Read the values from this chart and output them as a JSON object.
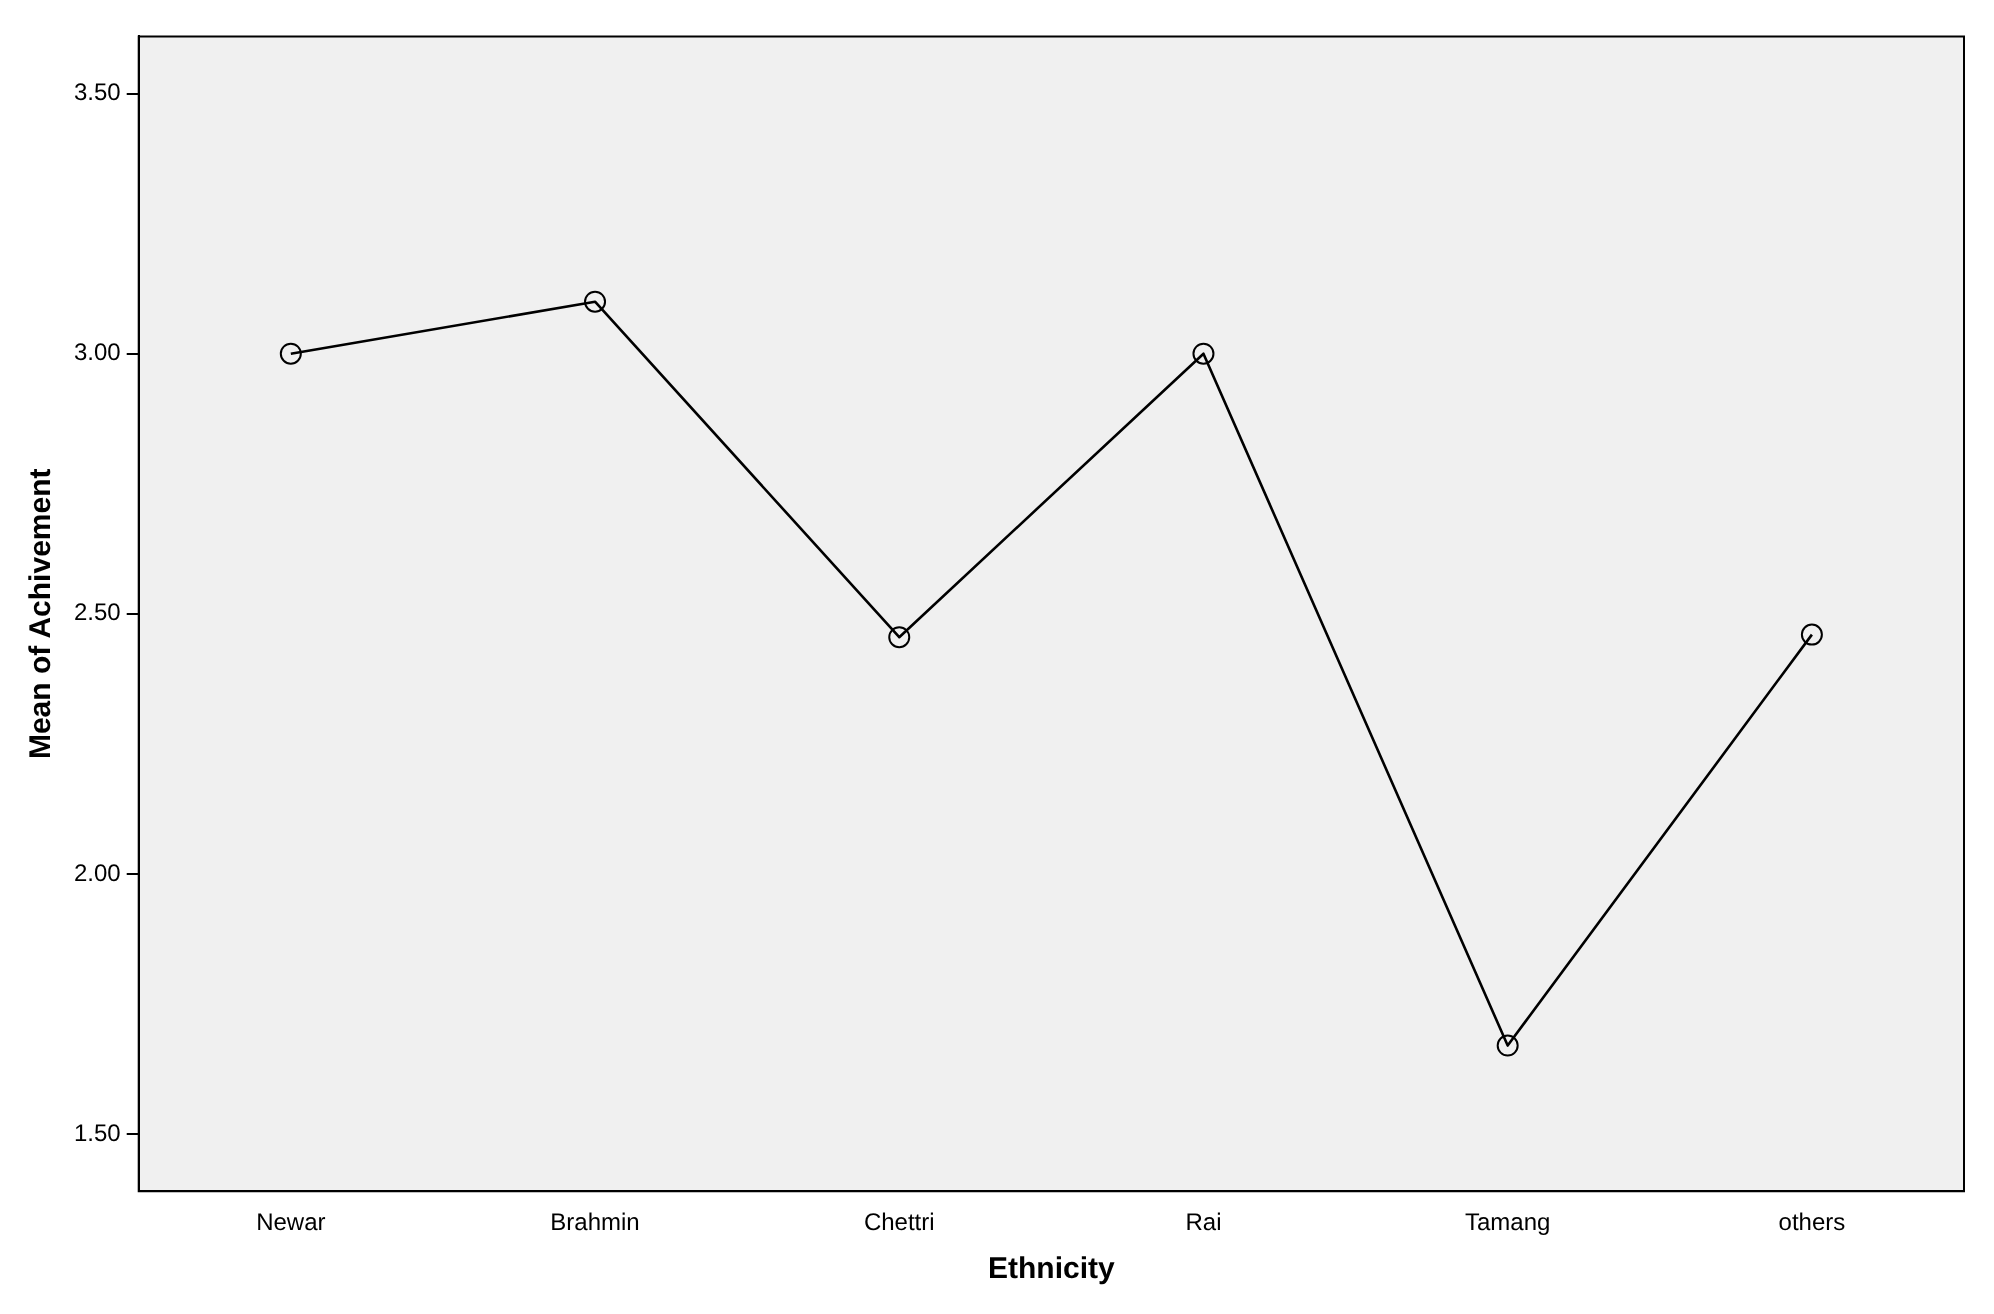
{
  "chart_data": {
    "type": "line",
    "xlabel": "Ethnicity",
    "ylabel": "Mean of Achivement",
    "categories": [
      "Newar",
      "Brahmin",
      "Chettri",
      "Rai",
      "Tamang",
      "others"
    ],
    "values": [
      3.0,
      3.1,
      2.455,
      3.0,
      1.67,
      2.46
    ],
    "color": "#000000",
    "marker": "circle",
    "line_style": "solid",
    "grid": false,
    "legend": false,
    "ylim": [
      1.39,
      3.61
    ],
    "yticks": [
      {
        "value": 1.5,
        "label": "1.50"
      },
      {
        "value": 2,
        "label": "2.00"
      },
      {
        "value": 2.5,
        "label": "2.50"
      },
      {
        "value": 3,
        "label": "3.00"
      },
      {
        "value": 3.5,
        "label": "3.50"
      }
    ]
  }
}
